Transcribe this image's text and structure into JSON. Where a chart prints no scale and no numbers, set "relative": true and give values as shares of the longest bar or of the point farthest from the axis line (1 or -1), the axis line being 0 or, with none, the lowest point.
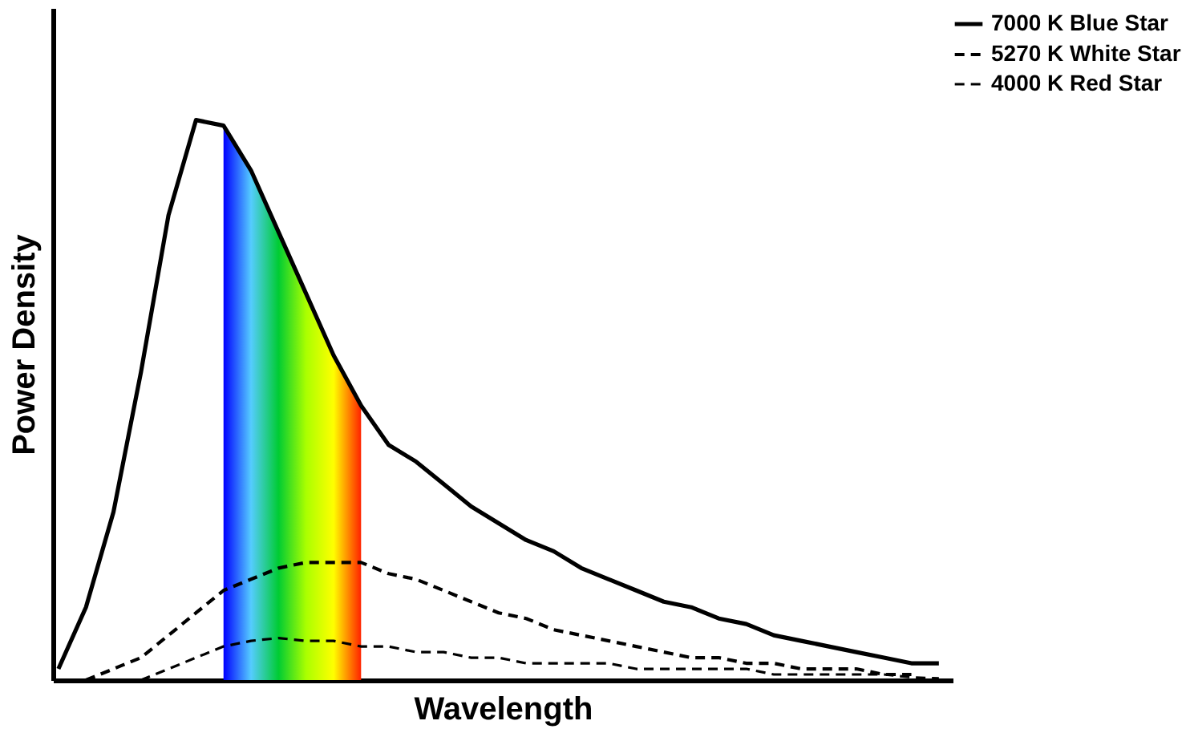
{
  "chart_data": {
    "type": "line",
    "relative": true,
    "xlabel": "Wavelength",
    "ylabel": "Power Density",
    "tick_labels": false,
    "grid": false,
    "legend": "right",
    "categories": [
      null,
      null,
      null,
      null,
      null,
      null,
      null,
      null,
      null,
      null,
      null,
      null,
      null,
      null,
      null,
      null,
      null,
      null,
      null,
      null,
      null,
      null,
      null,
      null,
      null,
      null,
      null,
      null,
      null,
      null,
      null,
      null,
      null
    ],
    "series": [
      {
        "type": "area",
        "colors": [
          null,
          null,
          null,
          null,
          null,
          null,
          "#0000ff",
          "#55ccff",
          "#00cc33",
          "#aaff00",
          "#ffff00",
          "#ff2200",
          null,
          null,
          null,
          null,
          null,
          null,
          null,
          null,
          null,
          null,
          null,
          null,
          null,
          null,
          null,
          null,
          null,
          null,
          null,
          null,
          null
        ],
        "values": [
          null,
          null,
          null,
          null,
          null,
          null,
          0.99,
          0.91,
          0.8,
          0.69,
          0.58,
          0.49,
          null,
          null,
          null,
          null,
          null,
          null,
          null,
          null,
          null,
          null,
          null,
          null,
          null,
          null,
          null,
          null,
          null,
          null,
          null,
          null,
          null
        ]
      },
      {
        "name": "7000 K Blue Star",
        "color": "#000000",
        "line_style": "solid",
        "values": [
          0.02,
          0.13,
          0.3,
          0.55,
          0.83,
          1.0,
          0.99,
          0.91,
          0.8,
          0.69,
          0.58,
          0.49,
          0.42,
          0.39,
          0.35,
          0.31,
          0.28,
          0.25,
          0.23,
          0.2,
          0.18,
          0.16,
          0.14,
          0.13,
          0.11,
          0.1,
          0.08,
          0.07,
          0.06,
          0.05,
          0.04,
          0.03,
          0.03
        ]
      },
      {
        "name": "5270 K White Star",
        "color": "#000000",
        "line_style": "dashed",
        "values": [
          null,
          0,
          0.02,
          0.04,
          0.08,
          0.12,
          0.16,
          0.18,
          0.2,
          0.21,
          0.21,
          0.21,
          0.19,
          0.18,
          0.16,
          0.14,
          0.12,
          0.11,
          0.09,
          0.08,
          0.07,
          0.06,
          0.05,
          0.04,
          0.04,
          0.03,
          0.03,
          0.02,
          0.02,
          0.02,
          0.01,
          0.01,
          null
        ]
      },
      {
        "name": "4000 K Red Star",
        "color": "#000000",
        "line_style": "dashed",
        "values": [
          null,
          null,
          null,
          0,
          0.02,
          0.04,
          0.06,
          0.07,
          0.075,
          0.07,
          0.07,
          0.06,
          0.06,
          0.05,
          0.05,
          0.04,
          0.04,
          0.03,
          0.03,
          0.03,
          0.03,
          0.02,
          0.02,
          0.02,
          0.02,
          0.02,
          0.01,
          0.01,
          0.01,
          0.01,
          0.01,
          0.005,
          0.003
        ]
      }
    ]
  }
}
